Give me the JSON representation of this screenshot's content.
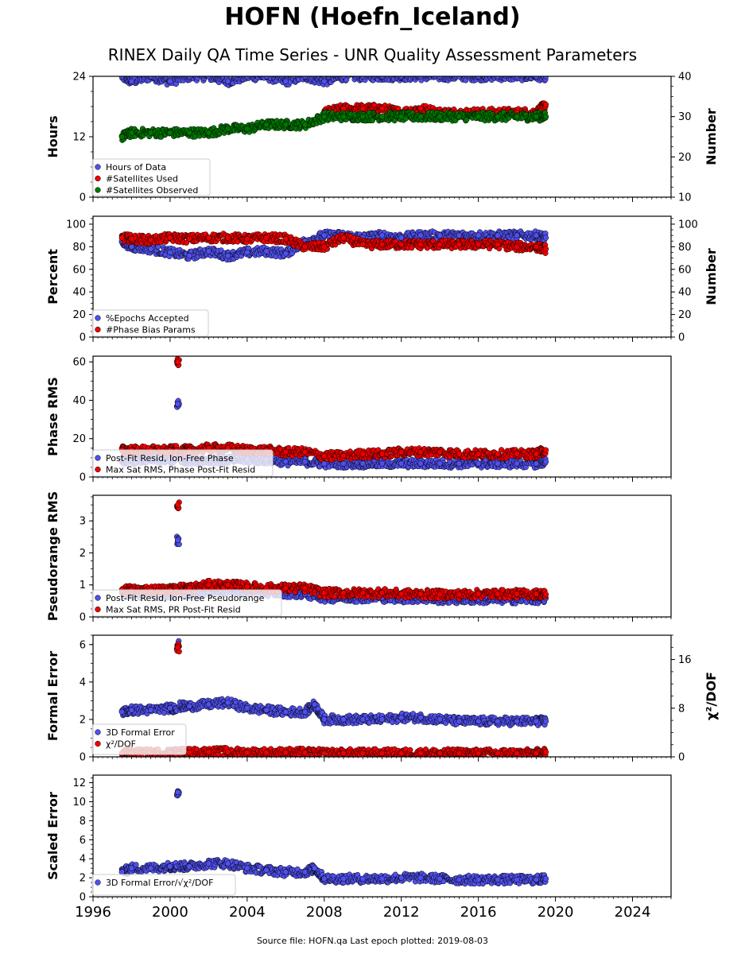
{
  "title": "HOFN (Hoefn_Iceland)",
  "subtitle": "RINEX Daily QA Time Series - UNR Quality Assessment Parameters",
  "footer": "Source file: HOFN.qa Last epoch plotted: 2019-08-03",
  "colors": {
    "blue": "#5050ee",
    "red": "#ee0000",
    "green": "#007700"
  },
  "chart_data": [
    {
      "type": "scatter",
      "ylabel": "Hours",
      "y2label": "Number",
      "ylim": [
        0,
        24
      ],
      "yticks": [
        0,
        12,
        24
      ],
      "y2lim": [
        10,
        40
      ],
      "y2ticks": [
        10,
        20,
        30,
        40
      ],
      "xlim": [
        1996,
        2026
      ],
      "legend": "lower-left",
      "series": [
        {
          "name": "Hours of Data",
          "color": "blue",
          "axis": "left",
          "x": [
            1997.5,
            1998,
            1999,
            2000,
            2001,
            2002,
            2003,
            2004,
            2005,
            2006,
            2007,
            2008,
            2009,
            2010,
            2011,
            2012,
            2013,
            2014,
            2015,
            2016,
            2017,
            2018,
            2019,
            2019.5
          ],
          "y": [
            24,
            23,
            24,
            23,
            24,
            24,
            23,
            24,
            24,
            23,
            24,
            23,
            24,
            24,
            24,
            24,
            24,
            24,
            24,
            24,
            24,
            24,
            24,
            24
          ]
        },
        {
          "name": "#Satellites Used",
          "color": "red",
          "axis": "right",
          "x": [
            2008,
            2009,
            2010,
            2011,
            2012,
            2013,
            2014,
            2015,
            2016,
            2017,
            2018,
            2019,
            2019.5
          ],
          "y": [
            31,
            32,
            32,
            32,
            31,
            32,
            31,
            31,
            31,
            31,
            31,
            31,
            33
          ]
        },
        {
          "name": "#Satellites Observed",
          "color": "green",
          "axis": "right",
          "x": [
            1997.5,
            1998,
            1999,
            2000,
            2001,
            2002,
            2003,
            2004,
            2005,
            2006,
            2007,
            2008,
            2009,
            2010,
            2011,
            2012,
            2013,
            2014,
            2015,
            2016,
            2017,
            2018,
            2019,
            2019.5
          ],
          "y": [
            25,
            26,
            26,
            26,
            26,
            26,
            27,
            27,
            28,
            28,
            28,
            30,
            30,
            30,
            30,
            30,
            30,
            30,
            30,
            30,
            30,
            30,
            30,
            30
          ]
        }
      ]
    },
    {
      "type": "scatter",
      "ylabel": "Percent",
      "y2label": "Number",
      "ylim": [
        0,
        107
      ],
      "yticks": [
        0,
        20,
        40,
        60,
        80,
        100
      ],
      "y2lim": [
        0,
        107
      ],
      "y2ticks": [
        0,
        20,
        40,
        60,
        80,
        100
      ],
      "xlim": [
        1996,
        2026
      ],
      "legend": "lower-left",
      "series": [
        {
          "name": "%Epochs Accepted",
          "color": "blue",
          "axis": "left",
          "x": [
            1997.5,
            1998,
            1999,
            2000,
            2001,
            2002,
            2003,
            2004,
            2005,
            2006,
            2007,
            2008,
            2009,
            2010,
            2011,
            2012,
            2013,
            2014,
            2015,
            2016,
            2017,
            2018,
            2019,
            2019.5
          ],
          "y": [
            85,
            80,
            78,
            75,
            72,
            76,
            72,
            75,
            76,
            74,
            85,
            90,
            90,
            88,
            90,
            88,
            90,
            90,
            90,
            90,
            90,
            90,
            90,
            88
          ]
        },
        {
          "name": "#Phase Bias Params",
          "color": "red",
          "axis": "right",
          "x": [
            1997.5,
            1998,
            1999,
            2000,
            2001,
            2002,
            2003,
            2004,
            2005,
            2006,
            2007,
            2008,
            2009,
            2010,
            2011,
            2012,
            2013,
            2014,
            2015,
            2016,
            2017,
            2018,
            2019,
            2019.5
          ],
          "y": [
            88,
            87,
            86,
            88,
            87,
            88,
            88,
            87,
            88,
            87,
            80,
            80,
            88,
            82,
            82,
            82,
            82,
            82,
            82,
            82,
            82,
            80,
            80,
            78
          ]
        }
      ]
    },
    {
      "type": "scatter",
      "ylabel": "Phase RMS",
      "ylim": [
        0,
        63
      ],
      "yticks": [
        0,
        20,
        40,
        60
      ],
      "xlim": [
        1996,
        2026
      ],
      "legend": "lower-left",
      "series": [
        {
          "name": "Post-Fit Resid, Ion-Free Phase",
          "color": "blue",
          "axis": "left",
          "x": [
            1997.5,
            1998,
            1999,
            2000,
            2000.4,
            2001,
            2002,
            2003,
            2004,
            2005,
            2006,
            2007,
            2008,
            2009,
            2010,
            2011,
            2012,
            2013,
            2014,
            2015,
            2016,
            2017,
            2018,
            2019,
            2019.5
          ],
          "y": [
            9,
            9,
            9,
            9,
            38,
            9,
            9,
            9,
            9,
            9,
            8,
            8,
            7,
            7,
            7,
            7,
            7,
            7,
            7,
            7,
            7,
            7,
            7,
            7,
            8
          ]
        },
        {
          "name": "Max Sat RMS, Phase Post-Fit Resid",
          "color": "red",
          "axis": "left",
          "x": [
            1997.5,
            1998,
            1999,
            2000,
            2000.4,
            2001,
            2002,
            2003,
            2004,
            2005,
            2006,
            2007,
            2008,
            2009,
            2010,
            2011,
            2012,
            2013,
            2014,
            2015,
            2016,
            2017,
            2018,
            2019,
            2019.5
          ],
          "y": [
            14,
            14,
            14,
            14,
            60,
            14,
            15,
            15,
            14,
            14,
            13,
            13,
            11,
            11,
            12,
            12,
            13,
            13,
            13,
            12,
            12,
            12,
            12,
            12,
            14
          ]
        }
      ]
    },
    {
      "type": "scatter",
      "ylabel": "Pseudorange RMS",
      "ylim": [
        0,
        3.8
      ],
      "yticks": [
        0,
        1,
        2,
        3
      ],
      "xlim": [
        1996,
        2026
      ],
      "legend": "lower-left",
      "series": [
        {
          "name": "Post-Fit Resid, Ion-Free Pseudorange",
          "color": "blue",
          "axis": "left",
          "x": [
            1997.5,
            1998,
            1999,
            2000,
            2000.4,
            2001,
            2002,
            2003,
            2004,
            2005,
            2006,
            2007,
            2008,
            2009,
            2010,
            2011,
            2012,
            2013,
            2014,
            2015,
            2016,
            2017,
            2018,
            2019,
            2019.5
          ],
          "y": [
            0.75,
            0.72,
            0.72,
            0.72,
            2.4,
            0.75,
            0.8,
            0.82,
            0.8,
            0.78,
            0.75,
            0.72,
            0.6,
            0.6,
            0.6,
            0.6,
            0.58,
            0.58,
            0.55,
            0.55,
            0.55,
            0.55,
            0.55,
            0.55,
            0.58
          ]
        },
        {
          "name": "Max Sat RMS, PR Post-Fit Resid",
          "color": "red",
          "axis": "left",
          "x": [
            1997.5,
            1998,
            1999,
            2000,
            2000.4,
            2001,
            2002,
            2003,
            2004,
            2005,
            2006,
            2007,
            2008,
            2009,
            2010,
            2011,
            2012,
            2013,
            2014,
            2015,
            2016,
            2017,
            2018,
            2019,
            2019.5
          ],
          "y": [
            0.85,
            0.85,
            0.85,
            0.85,
            3.5,
            0.9,
            1.0,
            1.0,
            0.95,
            0.9,
            0.9,
            0.9,
            0.75,
            0.75,
            0.75,
            0.75,
            0.72,
            0.72,
            0.7,
            0.7,
            0.72,
            0.72,
            0.72,
            0.72,
            0.7
          ]
        }
      ]
    },
    {
      "type": "scatter",
      "ylabel": "Formal Error",
      "y2label": "χ²/DOF",
      "ylim": [
        0,
        6.5
      ],
      "yticks": [
        0,
        2,
        4,
        6
      ],
      "y2lim": [
        0,
        20
      ],
      "y2ticks": [
        0,
        8,
        16
      ],
      "xlim": [
        1996,
        2026
      ],
      "legend": "lower-left",
      "series": [
        {
          "name": "3D Formal Error",
          "color": "blue",
          "axis": "left",
          "x": [
            1997.5,
            1998,
            1999,
            2000,
            2000.4,
            2001,
            2002,
            2003,
            2004,
            2005,
            2006,
            2007,
            2007.5,
            2008,
            2009,
            2010,
            2011,
            2012,
            2013,
            2014,
            2015,
            2016,
            2017,
            2018,
            2019,
            2019.5
          ],
          "y": [
            2.4,
            2.5,
            2.5,
            2.6,
            6.0,
            2.7,
            2.8,
            2.9,
            2.6,
            2.5,
            2.4,
            2.4,
            2.8,
            2.0,
            2.0,
            2.0,
            2.0,
            2.1,
            2.1,
            2.0,
            1.9,
            1.9,
            1.9,
            1.9,
            1.9,
            1.9
          ]
        },
        {
          "name": "χ²/DOF",
          "color": "red",
          "axis": "right",
          "x": [
            1997.5,
            1998,
            1999,
            2000,
            2000.4,
            2001,
            2002,
            2003,
            2004,
            2005,
            2006,
            2007,
            2008,
            2009,
            2010,
            2011,
            2012,
            2013,
            2014,
            2015,
            2016,
            2017,
            2018,
            2019,
            2019.5
          ],
          "y": [
            0.6,
            0.6,
            0.6,
            0.7,
            18,
            0.7,
            0.8,
            0.8,
            0.7,
            0.7,
            0.7,
            0.7,
            0.6,
            0.6,
            0.6,
            0.6,
            0.6,
            0.6,
            0.6,
            0.6,
            0.6,
            0.6,
            0.6,
            0.6,
            0.8
          ]
        }
      ]
    },
    {
      "type": "scatter",
      "ylabel": "Scaled Error",
      "ylim": [
        0,
        12.8
      ],
      "yticks": [
        0,
        2,
        4,
        6,
        8,
        10,
        12
      ],
      "xlim": [
        1996,
        2026
      ],
      "xticks": [
        1996,
        2000,
        2004,
        2008,
        2012,
        2016,
        2020,
        2024
      ],
      "legend": "lower-left",
      "series": [
        {
          "name": "3D Formal Error/√χ²/DOF",
          "color": "blue",
          "axis": "left",
          "x": [
            1997.5,
            1998,
            1999,
            2000,
            2000.4,
            2001,
            2002,
            2003,
            2004,
            2005,
            2006,
            2007,
            2007.5,
            2008,
            2009,
            2010,
            2011,
            2012,
            2013,
            2014,
            2015,
            2016,
            2017,
            2018,
            2019,
            2019.5
          ],
          "y": [
            2.6,
            3.0,
            3.0,
            3.2,
            11,
            3.2,
            3.5,
            3.5,
            3.0,
            2.8,
            2.6,
            2.6,
            3.0,
            1.9,
            1.9,
            1.9,
            1.9,
            2.0,
            2.0,
            1.9,
            1.8,
            1.8,
            1.8,
            1.8,
            1.8,
            1.9
          ]
        }
      ]
    }
  ]
}
